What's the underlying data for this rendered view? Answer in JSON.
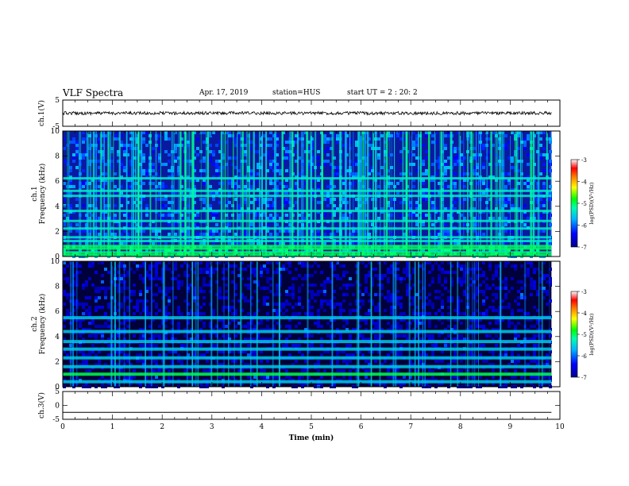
{
  "header": {
    "title": "VLF Spectra",
    "date": "Apr. 17, 2019",
    "station": "station=HUS",
    "start": "start  UT =   2 : 20: 2"
  },
  "chart_data": [
    {
      "type": "line",
      "panel": "ch1-waveform",
      "ylabel": "ch.1(V)",
      "ylim": [
        -5,
        5
      ],
      "yticks": [
        5,
        -5
      ],
      "x_range_min": [
        0,
        9.83
      ],
      "y_level": 0,
      "color": "#000000"
    },
    {
      "type": "heatmap",
      "panel": "ch1-spectrogram",
      "ylabel": "ch.1\nFrequency (kHz)",
      "ylim": [
        0,
        10
      ],
      "yticks": [
        0,
        2,
        4,
        6,
        8,
        10
      ],
      "x_range_min": [
        0,
        9.83
      ],
      "colorbar": {
        "label": "log(PSD)(V²/Hz)",
        "range": [
          -7,
          -3
        ],
        "ticks": [
          -3,
          -4,
          -5,
          -6,
          -7
        ]
      },
      "narrowband_lines_khz": [
        0.1,
        0.3,
        0.6,
        0.8,
        1.2,
        1.5,
        2.2,
        2.8,
        3.6,
        4.8,
        5.2,
        6.2
      ],
      "broadband_bursts_min": [
        0.9,
        1.5,
        2.35,
        2.45,
        2.6,
        2.9,
        3.6,
        4.4,
        4.6,
        4.9,
        5.2,
        6.5,
        6.9,
        7.6,
        8.2,
        8.6,
        9.4
      ],
      "background_level": -6.5
    },
    {
      "type": "heatmap",
      "panel": "ch2-spectrogram",
      "ylabel": "ch.2\nFrequency (kHz)",
      "ylim": [
        0,
        10
      ],
      "yticks": [
        0,
        2,
        4,
        6,
        8,
        10
      ],
      "x_range_min": [
        0,
        9.83
      ],
      "colorbar": {
        "label": "log(PSD)(V²/Hz)",
        "range": [
          -7,
          -3
        ],
        "ticks": [
          -3,
          -4,
          -5,
          -6,
          -7
        ]
      },
      "harmonic_lines_khz": [
        0.4,
        1.0,
        1.6,
        2.3,
        3.0,
        3.6,
        4.4,
        5.5
      ],
      "background_level": -7
    },
    {
      "type": "line",
      "panel": "ch3-waveform",
      "ylabel": "ch.3(V)",
      "xlabel": "Time (min)",
      "ylim": [
        -5,
        5
      ],
      "yticks": [
        5,
        0,
        -5
      ],
      "xlim": [
        0,
        10
      ],
      "xticks": [
        0,
        1,
        2,
        3,
        4,
        5,
        6,
        7,
        8,
        9,
        10
      ],
      "x_range_min": [
        0,
        9.83
      ],
      "y_level": -2.5,
      "color": "#000000"
    }
  ]
}
